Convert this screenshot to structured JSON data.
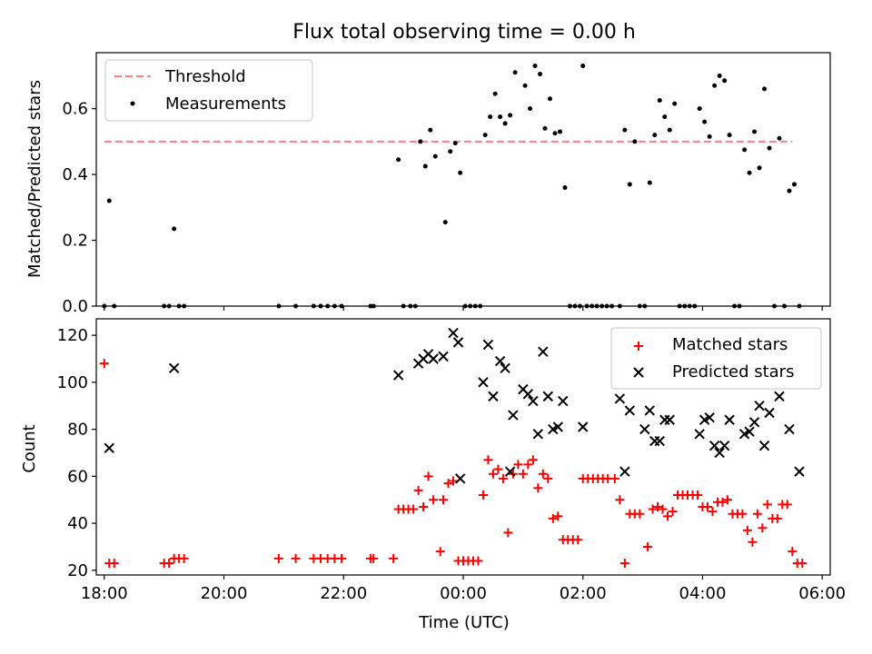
{
  "figure_title": "Flux total observing time = 0.00 h",
  "colors": {
    "threshold": "#ff7f7f",
    "measurements": "#000000",
    "matched": "#ff0000",
    "predicted": "#000000"
  },
  "chart_data": [
    {
      "type": "scatter",
      "title": "Flux total observing time = 0.00 h",
      "xlabel": "",
      "ylabel": "Matched/Predicted stars",
      "xlim": [
        "17:52",
        "06:08"
      ],
      "ylim": [
        0,
        0.77
      ],
      "yticks": [
        "0.0",
        "0.2",
        "0.4",
        "0.6"
      ],
      "grid": false,
      "legend_position": "top-left",
      "legend": [
        "Threshold",
        "Measurements"
      ],
      "threshold": {
        "name": "Threshold",
        "y": 0.5,
        "x_range": [
          "18:00",
          "05:30"
        ],
        "style": "dashed"
      },
      "series": [
        {
          "name": "Measurements",
          "marker": "dot",
          "points": [
            [
              "18:00",
              0
            ],
            [
              "18:05",
              0.32
            ],
            [
              "18:10",
              0
            ],
            [
              "19:00",
              0
            ],
            [
              "19:05",
              0
            ],
            [
              "19:10",
              0.235
            ],
            [
              "19:15",
              0
            ],
            [
              "19:20",
              0
            ],
            [
              "20:55",
              0
            ],
            [
              "21:12",
              0
            ],
            [
              "21:30",
              0
            ],
            [
              "21:37",
              0
            ],
            [
              "21:44",
              0
            ],
            [
              "21:51",
              0
            ],
            [
              "21:58",
              0
            ],
            [
              "22:27",
              0
            ],
            [
              "22:30",
              0
            ],
            [
              "22:55",
              0.445
            ],
            [
              "23:00",
              0
            ],
            [
              "23:07",
              0
            ],
            [
              "23:12",
              0
            ],
            [
              "23:17",
              0.5
            ],
            [
              "23:22",
              0.425
            ],
            [
              "23:27",
              0.535
            ],
            [
              "23:32",
              0.455
            ],
            [
              "23:42",
              0.255
            ],
            [
              "23:47",
              0.47
            ],
            [
              "23:52",
              0.495
            ],
            [
              "23:57",
              0.405
            ],
            [
              "00:02",
              0
            ],
            [
              "00:07",
              0
            ],
            [
              "00:12",
              0
            ],
            [
              "00:17",
              0
            ],
            [
              "00:22",
              0.52
            ],
            [
              "00:27",
              0.575
            ],
            [
              "00:32",
              0.645
            ],
            [
              "00:37",
              0.575
            ],
            [
              "00:42",
              0.555
            ],
            [
              "00:47",
              0.58
            ],
            [
              "00:52",
              0.71
            ],
            [
              "01:02",
              0.67
            ],
            [
              "01:07",
              0.6
            ],
            [
              "01:12",
              0.73
            ],
            [
              "01:17",
              0.705
            ],
            [
              "01:22",
              0.54
            ],
            [
              "01:27",
              0.63
            ],
            [
              "01:32",
              0.525
            ],
            [
              "01:37",
              0.53
            ],
            [
              "01:42",
              0.36
            ],
            [
              "01:47",
              0
            ],
            [
              "01:52",
              0
            ],
            [
              "01:57",
              0
            ],
            [
              "02:00",
              0.73
            ],
            [
              "02:04",
              0
            ],
            [
              "02:09",
              0
            ],
            [
              "02:14",
              0
            ],
            [
              "02:19",
              0
            ],
            [
              "02:24",
              0
            ],
            [
              "02:29",
              0
            ],
            [
              "02:37",
              0
            ],
            [
              "02:42",
              0.535
            ],
            [
              "02:47",
              0.37
            ],
            [
              "02:52",
              0.5
            ],
            [
              "02:57",
              0
            ],
            [
              "03:02",
              0
            ],
            [
              "03:07",
              0.375
            ],
            [
              "03:12",
              0.52
            ],
            [
              "03:17",
              0.625
            ],
            [
              "03:22",
              0.575
            ],
            [
              "03:27",
              0.535
            ],
            [
              "03:32",
              0.615
            ],
            [
              "03:37",
              0
            ],
            [
              "03:42",
              0
            ],
            [
              "03:47",
              0
            ],
            [
              "03:52",
              0
            ],
            [
              "03:57",
              0.6
            ],
            [
              "04:02",
              0.56
            ],
            [
              "04:07",
              0.515
            ],
            [
              "04:12",
              0.67
            ],
            [
              "04:17",
              0.7
            ],
            [
              "04:22",
              0.685
            ],
            [
              "04:27",
              0.52
            ],
            [
              "04:32",
              0
            ],
            [
              "04:37",
              0
            ],
            [
              "04:42",
              0.475
            ],
            [
              "04:47",
              0.405
            ],
            [
              "04:52",
              0.53
            ],
            [
              "04:57",
              0.42
            ],
            [
              "05:02",
              0.66
            ],
            [
              "05:07",
              0.48
            ],
            [
              "05:12",
              0
            ],
            [
              "05:17",
              0.51
            ],
            [
              "05:22",
              0
            ],
            [
              "05:27",
              0.35
            ],
            [
              "05:32",
              0.37
            ],
            [
              "05:37",
              0
            ]
          ]
        }
      ]
    },
    {
      "type": "scatter",
      "title": "",
      "xlabel": "Time (UTC)",
      "ylabel": "Count",
      "xlim": [
        "17:52",
        "06:08"
      ],
      "xticks": [
        "18:00",
        "20:00",
        "22:00",
        "00:00",
        "02:00",
        "04:00",
        "06:00"
      ],
      "ylim": [
        18,
        127
      ],
      "yticks": [
        "20",
        "40",
        "60",
        "80",
        "100",
        "120"
      ],
      "grid": false,
      "legend_position": "top-right",
      "legend": [
        "Matched stars",
        "Predicted stars"
      ],
      "series": [
        {
          "name": "Matched stars",
          "marker": "+",
          "points": [
            [
              "18:00",
              108
            ],
            [
              "18:05",
              23
            ],
            [
              "18:10",
              23
            ],
            [
              "19:00",
              23
            ],
            [
              "19:05",
              23
            ],
            [
              "19:10",
              25
            ],
            [
              "19:15",
              25
            ],
            [
              "19:20",
              25
            ],
            [
              "20:55",
              25
            ],
            [
              "21:12",
              25
            ],
            [
              "21:30",
              25
            ],
            [
              "21:37",
              25
            ],
            [
              "21:44",
              25
            ],
            [
              "21:51",
              25
            ],
            [
              "21:58",
              25
            ],
            [
              "22:27",
              25
            ],
            [
              "22:30",
              25
            ],
            [
              "22:50",
              25
            ],
            [
              "22:55",
              46
            ],
            [
              "23:00",
              46
            ],
            [
              "23:05",
              46
            ],
            [
              "23:10",
              46
            ],
            [
              "23:15",
              54
            ],
            [
              "23:20",
              47
            ],
            [
              "23:25",
              60
            ],
            [
              "23:30",
              50
            ],
            [
              "23:37",
              28
            ],
            [
              "23:40",
              50
            ],
            [
              "23:45",
              57
            ],
            [
              "23:50",
              58
            ],
            [
              "23:55",
              24
            ],
            [
              "00:00",
              24
            ],
            [
              "00:05",
              24
            ],
            [
              "00:10",
              24
            ],
            [
              "00:15",
              24
            ],
            [
              "00:20",
              52
            ],
            [
              "00:25",
              67
            ],
            [
              "00:30",
              61
            ],
            [
              "00:35",
              63
            ],
            [
              "00:40",
              59
            ],
            [
              "00:45",
              36
            ],
            [
              "00:50",
              61
            ],
            [
              "00:55",
              65
            ],
            [
              "01:00",
              61
            ],
            [
              "01:05",
              65
            ],
            [
              "01:10",
              67
            ],
            [
              "01:15",
              55
            ],
            [
              "01:20",
              61
            ],
            [
              "01:25",
              59
            ],
            [
              "01:30",
              42
            ],
            [
              "01:35",
              43
            ],
            [
              "01:40",
              33
            ],
            [
              "01:45",
              33
            ],
            [
              "01:50",
              33
            ],
            [
              "01:55",
              33
            ],
            [
              "02:00",
              59
            ],
            [
              "02:05",
              59
            ],
            [
              "02:10",
              59
            ],
            [
              "02:15",
              59
            ],
            [
              "02:20",
              59
            ],
            [
              "02:25",
              59
            ],
            [
              "02:32",
              59
            ],
            [
              "02:37",
              50
            ],
            [
              "02:42",
              23
            ],
            [
              "02:47",
              44
            ],
            [
              "02:52",
              44
            ],
            [
              "02:57",
              44
            ],
            [
              "03:05",
              30
            ],
            [
              "03:10",
              46
            ],
            [
              "03:15",
              47
            ],
            [
              "03:20",
              46
            ],
            [
              "03:25",
              43
            ],
            [
              "03:30",
              45
            ],
            [
              "03:35",
              52
            ],
            [
              "03:40",
              52
            ],
            [
              "03:45",
              52
            ],
            [
              "03:50",
              52
            ],
            [
              "03:55",
              52
            ],
            [
              "04:00",
              47
            ],
            [
              "04:05",
              47
            ],
            [
              "04:10",
              45
            ],
            [
              "04:15",
              49
            ],
            [
              "04:20",
              49
            ],
            [
              "04:25",
              50
            ],
            [
              "04:30",
              44
            ],
            [
              "04:35",
              44
            ],
            [
              "04:40",
              44
            ],
            [
              "04:45",
              37
            ],
            [
              "04:50",
              32
            ],
            [
              "04:55",
              44
            ],
            [
              "05:00",
              38
            ],
            [
              "05:05",
              48
            ],
            [
              "05:10",
              42
            ],
            [
              "05:15",
              42
            ],
            [
              "05:20",
              48
            ],
            [
              "05:25",
              48
            ],
            [
              "05:30",
              28
            ],
            [
              "05:35",
              23
            ],
            [
              "05:40",
              23
            ]
          ]
        },
        {
          "name": "Predicted stars",
          "marker": "x",
          "points": [
            [
              "18:05",
              72
            ],
            [
              "19:10",
              106
            ],
            [
              "22:55",
              103
            ],
            [
              "23:15",
              108
            ],
            [
              "23:20",
              110
            ],
            [
              "23:25",
              112
            ],
            [
              "23:30",
              110
            ],
            [
              "23:40",
              111
            ],
            [
              "23:50",
              121
            ],
            [
              "23:55",
              117
            ],
            [
              "23:57",
              59
            ],
            [
              "00:20",
              100
            ],
            [
              "00:25",
              116
            ],
            [
              "00:30",
              94
            ],
            [
              "00:37",
              109
            ],
            [
              "00:42",
              106
            ],
            [
              "00:47",
              62
            ],
            [
              "00:50",
              86
            ],
            [
              "01:00",
              97
            ],
            [
              "01:05",
              95
            ],
            [
              "01:10",
              92
            ],
            [
              "01:15",
              78
            ],
            [
              "01:20",
              113
            ],
            [
              "01:25",
              94
            ],
            [
              "01:30",
              80
            ],
            [
              "01:35",
              81
            ],
            [
              "01:40",
              92
            ],
            [
              "02:00",
              81
            ],
            [
              "02:37",
              93
            ],
            [
              "02:42",
              62
            ],
            [
              "02:47",
              88
            ],
            [
              "03:02",
              80
            ],
            [
              "03:07",
              88
            ],
            [
              "03:12",
              75
            ],
            [
              "03:17",
              75
            ],
            [
              "03:22",
              84
            ],
            [
              "03:27",
              84
            ],
            [
              "03:57",
              78
            ],
            [
              "04:02",
              84
            ],
            [
              "04:07",
              85
            ],
            [
              "04:12",
              73
            ],
            [
              "04:17",
              70
            ],
            [
              "04:22",
              73
            ],
            [
              "04:27",
              84
            ],
            [
              "04:42",
              78
            ],
            [
              "04:47",
              79
            ],
            [
              "04:52",
              83
            ],
            [
              "04:57",
              90
            ],
            [
              "05:02",
              73
            ],
            [
              "05:07",
              87
            ],
            [
              "05:17",
              94
            ],
            [
              "05:27",
              80
            ],
            [
              "05:37",
              62
            ]
          ]
        }
      ]
    }
  ]
}
